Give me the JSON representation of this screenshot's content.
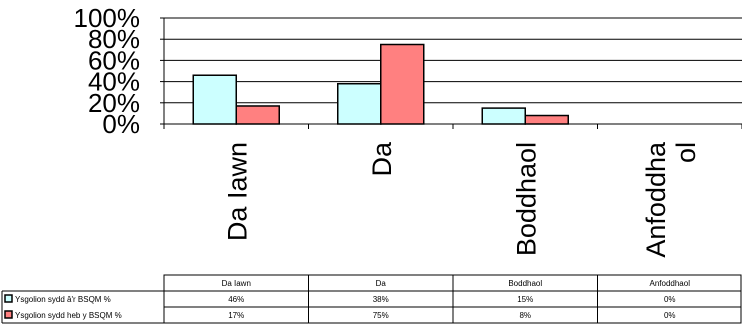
{
  "chart_data": {
    "type": "bar",
    "categories": [
      "Da Iawn",
      "Da",
      "Boddhaol",
      "Anfoddhaol"
    ],
    "category_axis_labels": [
      "Da Iawn",
      "Da",
      "Boddhaol",
      "Anfoddha\nol"
    ],
    "series": [
      {
        "name": "Ysgolion sydd â'r BSQM %",
        "values": [
          46,
          38,
          15,
          0
        ],
        "labels": [
          "46%",
          "38%",
          "15%",
          "0%"
        ],
        "color": "#CCFFFF"
      },
      {
        "name": "Ysgolion sydd heb y BSQM %",
        "values": [
          17,
          75,
          8,
          0
        ],
        "labels": [
          "17%",
          "75%",
          "8%",
          "0%"
        ],
        "color": "#FF8080"
      }
    ],
    "yticks": [
      "0%",
      "20%",
      "40%",
      "60%",
      "80%",
      "100%"
    ],
    "ylim": [
      0,
      100
    ],
    "grid": true,
    "legend": "data-table",
    "title": "",
    "xlabel": "",
    "ylabel": ""
  }
}
